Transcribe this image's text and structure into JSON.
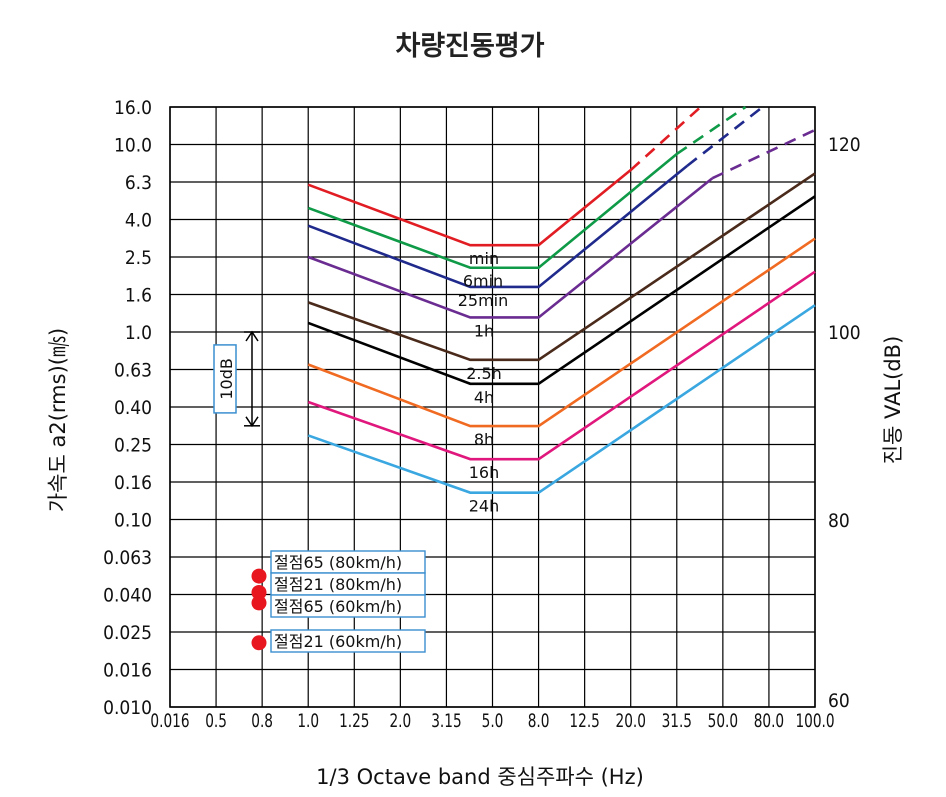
{
  "chart_data": {
    "type": "line",
    "title": "차량진동평가",
    "xlabel": "1/3 Octave band 중심주파수 (Hz)",
    "ylabel": "가속도 a2(rms)(㎧)",
    "ylabel_right": "진동 VAL(dB)",
    "x_ticks": [
      "0.016",
      "0.5",
      "0.8",
      "1.0",
      "1.25",
      "2.0",
      "3.15",
      "5.0",
      "8.0",
      "12.5",
      "20.0",
      "31.5",
      "50.0",
      "80.0",
      "100.0"
    ],
    "y_ticks": [
      "16.0",
      "10.0",
      "6.3",
      "4.0",
      "2.5",
      "1.6",
      "1.0",
      "0.63",
      "0.40",
      "0.25",
      "0.16",
      "0.10",
      "0.063",
      "0.040",
      "0.025",
      "0.016",
      "0.010"
    ],
    "y_ticks_right": [
      "120",
      "100",
      "80",
      "60"
    ],
    "grid": true,
    "scale_marker_label": "10dB",
    "series": [
      {
        "name": "min",
        "color": "#e11d23",
        "values": [
          [
            1.0,
            6.1
          ],
          [
            4.0,
            2.9
          ],
          [
            8.0,
            2.9
          ],
          [
            20.0,
            7.3
          ]
        ],
        "extension": [
          [
            20.0,
            7.3
          ],
          [
            40.0,
            16.0
          ]
        ]
      },
      {
        "name": "6min",
        "color": "#0f9a48",
        "values": [
          [
            1.0,
            4.6
          ],
          [
            4.0,
            2.2
          ],
          [
            8.0,
            2.2
          ],
          [
            31.5,
            8.9
          ]
        ],
        "extension": [
          [
            31.5,
            8.9
          ],
          [
            63.0,
            16.0
          ]
        ]
      },
      {
        "name": "25min",
        "color": "#1f2a8c",
        "values": [
          [
            1.0,
            3.7
          ],
          [
            4.0,
            1.75
          ],
          [
            8.0,
            1.75
          ],
          [
            35.0,
            7.7
          ]
        ],
        "extension": [
          [
            35.0,
            7.7
          ],
          [
            75.0,
            16.0
          ]
        ]
      },
      {
        "name": "1h",
        "color": "#6a2c91",
        "values": [
          [
            1.0,
            2.5
          ],
          [
            4.0,
            1.2
          ],
          [
            8.0,
            1.2
          ],
          [
            45.0,
            6.6
          ]
        ],
        "extension": [
          [
            45.0,
            6.6
          ],
          [
            100.0,
            12.0
          ]
        ]
      },
      {
        "name": "2.5h",
        "color": "#4a2a1a",
        "values": [
          [
            1.0,
            1.45
          ],
          [
            4.0,
            0.71
          ],
          [
            8.0,
            0.71
          ],
          [
            100.0,
            7.0
          ]
        ]
      },
      {
        "name": "4h",
        "color": "#000000",
        "values": [
          [
            1.0,
            1.12
          ],
          [
            4.0,
            0.53
          ],
          [
            8.0,
            0.53
          ],
          [
            100.0,
            5.3
          ]
        ]
      },
      {
        "name": "8h",
        "color": "#f06a22",
        "values": [
          [
            1.0,
            0.67
          ],
          [
            4.0,
            0.315
          ],
          [
            8.0,
            0.315
          ],
          [
            100.0,
            3.15
          ]
        ]
      },
      {
        "name": "16h",
        "color": "#e0177c",
        "values": [
          [
            1.0,
            0.425
          ],
          [
            4.0,
            0.21
          ],
          [
            8.0,
            0.21
          ],
          [
            100.0,
            2.1
          ]
        ]
      },
      {
        "name": "24h",
        "color": "#3aa7e0",
        "values": [
          [
            1.0,
            0.28
          ],
          [
            4.0,
            0.14
          ],
          [
            8.0,
            0.14
          ],
          [
            100.0,
            1.4
          ]
        ]
      }
    ],
    "points": [
      {
        "label": "절점65 (80km/h)",
        "x": 0.8,
        "y": 0.05
      },
      {
        "label": "절점21 (80km/h)",
        "x": 0.8,
        "y": 0.041
      },
      {
        "label": "절점65 (60km/h)",
        "x": 0.8,
        "y": 0.036
      },
      {
        "label": "절점21 (60km/h)",
        "x": 0.8,
        "y": 0.022
      }
    ],
    "point_color": "#e8161f"
  }
}
